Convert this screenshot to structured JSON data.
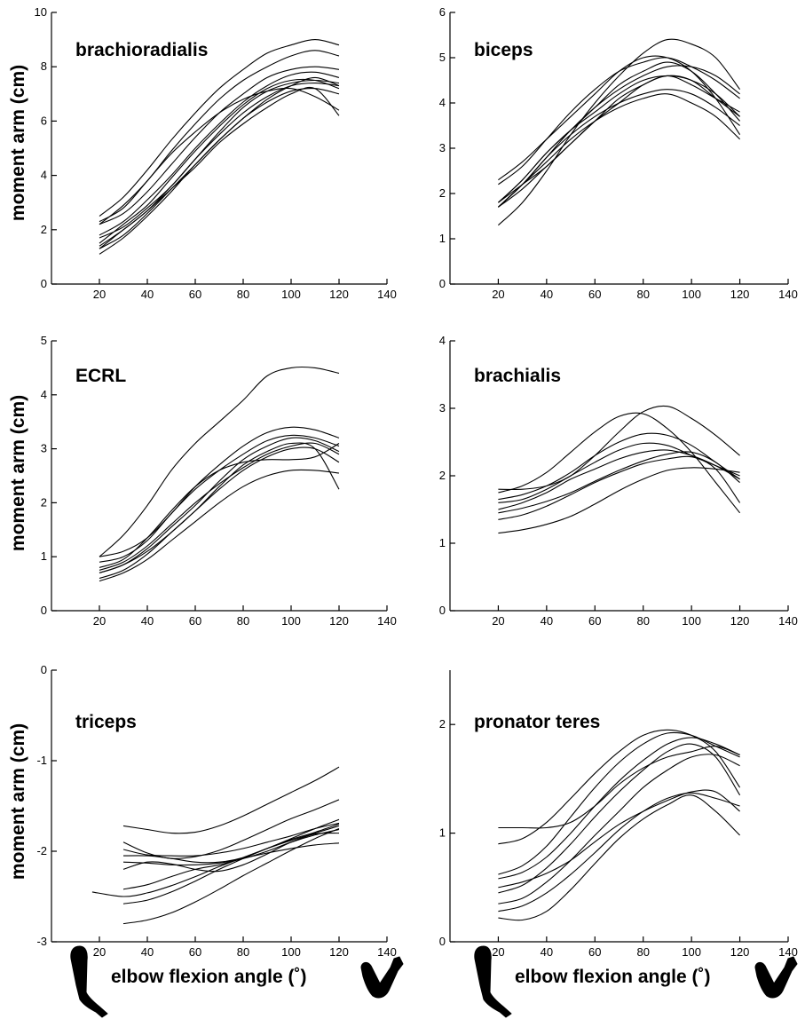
{
  "colors": {
    "background": "#ffffff",
    "ink": "#000000"
  },
  "figure": {
    "ylabel": "moment arm (cm)",
    "xlabel": "elbow flexion angle (˚)",
    "icons": [
      "extended-arm-icon",
      "flexed-arm-icon"
    ]
  },
  "chart_data": [
    {
      "type": "line",
      "title": "brachioradialis",
      "xlim": [
        0,
        140
      ],
      "ylim": [
        0,
        10
      ],
      "xticks": [
        20,
        40,
        60,
        80,
        100,
        120,
        140
      ],
      "yticks": [
        0,
        2,
        4,
        6,
        8,
        10
      ],
      "x": [
        20,
        30,
        40,
        50,
        60,
        70,
        80,
        90,
        100,
        110,
        120
      ],
      "series": [
        {
          "values": [
            2.5,
            3.2,
            4.2,
            5.3,
            6.3,
            7.2,
            7.9,
            8.5,
            8.8,
            9.0,
            8.8
          ]
        },
        {
          "values": [
            2.2,
            2.9,
            3.8,
            4.9,
            5.9,
            6.8,
            7.5,
            8.0,
            8.4,
            8.6,
            8.4
          ]
        },
        {
          "values": [
            2.2,
            2.6,
            3.4,
            4.4,
            5.4,
            6.3,
            7.0,
            7.6,
            7.9,
            8.0,
            7.9
          ]
        },
        {
          "values": [
            1.8,
            2.3,
            3.1,
            4.0,
            5.0,
            5.9,
            6.7,
            7.3,
            7.7,
            7.8,
            7.6
          ]
        },
        {
          "values": [
            1.5,
            2.2,
            2.9,
            3.9,
            4.9,
            5.8,
            6.6,
            7.2,
            7.5,
            7.5,
            7.2
          ]
        },
        {
          "values": [
            1.7,
            2.1,
            2.8,
            3.6,
            4.6,
            5.6,
            6.5,
            7.1,
            7.4,
            7.5,
            7.4
          ]
        },
        {
          "values": [
            1.3,
            2.0,
            2.7,
            3.6,
            4.6,
            5.5,
            6.3,
            6.9,
            7.3,
            7.4,
            7.3
          ]
        },
        {
          "values": [
            1.1,
            1.7,
            2.5,
            3.4,
            4.4,
            5.3,
            6.1,
            6.7,
            7.1,
            7.2,
            7.0
          ]
        },
        {
          "values": [
            1.4,
            2.0,
            2.7,
            3.5,
            4.3,
            5.2,
            5.9,
            6.5,
            7.0,
            7.2,
            6.2
          ]
        },
        {
          "values": [
            2.3,
            2.8,
            3.8,
            4.8,
            5.6,
            6.3,
            6.8,
            7.1,
            7.2,
            6.9,
            6.4
          ]
        },
        {
          "values": [
            1.3,
            1.8,
            2.6,
            3.5,
            4.4,
            5.3,
            6.1,
            6.8,
            7.3,
            7.6,
            7.3
          ]
        }
      ]
    },
    {
      "type": "line",
      "title": "biceps",
      "xlim": [
        0,
        140
      ],
      "ylim": [
        0,
        6
      ],
      "xticks": [
        20,
        40,
        60,
        80,
        100,
        120,
        140
      ],
      "yticks": [
        0,
        1,
        2,
        3,
        4,
        5,
        6
      ],
      "x": [
        20,
        30,
        40,
        50,
        60,
        70,
        80,
        90,
        100,
        110,
        120
      ],
      "series": [
        {
          "values": [
            1.3,
            1.8,
            2.5,
            3.3,
            4.0,
            4.6,
            5.1,
            5.4,
            5.3,
            5.0,
            4.3
          ]
        },
        {
          "values": [
            2.2,
            2.6,
            3.2,
            3.8,
            4.3,
            4.7,
            4.9,
            5.0,
            4.8,
            4.5,
            4.1
          ]
        },
        {
          "values": [
            2.3,
            2.7,
            3.2,
            3.7,
            4.2,
            4.7,
            5.0,
            5.0,
            4.7,
            4.1,
            3.3
          ]
        },
        {
          "values": [
            1.7,
            2.2,
            2.8,
            3.4,
            3.9,
            4.3,
            4.6,
            4.8,
            4.8,
            4.6,
            4.2
          ]
        },
        {
          "values": [
            1.8,
            2.3,
            2.9,
            3.4,
            3.8,
            4.2,
            4.5,
            4.6,
            4.5,
            4.2,
            3.7
          ]
        },
        {
          "values": [
            1.7,
            2.2,
            2.8,
            3.3,
            3.7,
            4.0,
            4.2,
            4.3,
            4.2,
            3.9,
            3.5
          ]
        },
        {
          "values": [
            1.8,
            2.3,
            2.9,
            3.4,
            3.9,
            4.4,
            4.7,
            4.9,
            4.7,
            4.2,
            3.6
          ]
        },
        {
          "values": [
            1.7,
            2.2,
            2.7,
            3.2,
            3.6,
            3.9,
            4.1,
            4.2,
            4.0,
            3.7,
            3.2
          ]
        },
        {
          "values": [
            1.8,
            2.2,
            2.6,
            3.1,
            3.6,
            4.0,
            4.4,
            4.6,
            4.5,
            4.1,
            3.7
          ]
        },
        {
          "values": [
            1.7,
            2.1,
            2.6,
            3.1,
            3.6,
            4.1,
            4.4,
            4.6,
            4.4,
            4.1,
            3.8
          ]
        }
      ]
    },
    {
      "type": "line",
      "title": "ECRL",
      "xlim": [
        0,
        140
      ],
      "ylim": [
        0,
        5
      ],
      "xticks": [
        20,
        40,
        60,
        80,
        100,
        120,
        140
      ],
      "yticks": [
        0,
        1,
        2,
        3,
        4,
        5
      ],
      "x": [
        20,
        30,
        40,
        50,
        60,
        70,
        80,
        90,
        100,
        110,
        120
      ],
      "series": [
        {
          "values": [
            1.0,
            1.4,
            1.95,
            2.6,
            3.1,
            3.5,
            3.9,
            4.35,
            4.5,
            4.5,
            4.4
          ]
        },
        {
          "values": [
            1.0,
            1.1,
            1.35,
            1.8,
            2.3,
            2.7,
            3.05,
            3.3,
            3.4,
            3.35,
            3.2
          ]
        },
        {
          "values": [
            0.9,
            1.0,
            1.3,
            1.8,
            2.25,
            2.6,
            2.9,
            3.15,
            3.25,
            3.2,
            3.05
          ]
        },
        {
          "values": [
            0.7,
            0.85,
            1.15,
            1.55,
            1.95,
            2.4,
            2.8,
            3.05,
            3.2,
            3.15,
            2.95
          ]
        },
        {
          "values": [
            0.75,
            0.9,
            1.2,
            1.6,
            2.0,
            2.35,
            2.65,
            2.9,
            3.05,
            3.1,
            2.9
          ]
        },
        {
          "values": [
            0.6,
            0.75,
            1.05,
            1.45,
            1.85,
            2.25,
            2.6,
            2.85,
            3.0,
            3.0,
            2.75
          ]
        },
        {
          "values": [
            0.55,
            0.7,
            0.95,
            1.3,
            1.65,
            2.0,
            2.3,
            2.5,
            2.6,
            2.6,
            2.55
          ]
        },
        {
          "values": [
            0.8,
            0.95,
            1.35,
            1.85,
            2.3,
            2.6,
            2.75,
            2.8,
            2.8,
            2.85,
            3.1
          ]
        },
        {
          "values": [
            0.7,
            0.85,
            1.1,
            1.45,
            1.85,
            2.3,
            2.7,
            2.95,
            3.1,
            3.0,
            2.25
          ]
        }
      ]
    },
    {
      "type": "line",
      "title": "brachialis",
      "xlim": [
        0,
        140
      ],
      "ylim": [
        0,
        4
      ],
      "xticks": [
        20,
        40,
        60,
        80,
        100,
        120,
        140
      ],
      "yticks": [
        0,
        1,
        2,
        3,
        4
      ],
      "x": [
        20,
        30,
        40,
        50,
        60,
        70,
        80,
        90,
        100,
        110,
        120
      ],
      "series": [
        {
          "values": [
            1.75,
            1.85,
            2.05,
            2.35,
            2.65,
            2.88,
            2.92,
            2.7,
            2.35,
            1.9,
            1.45
          ]
        },
        {
          "values": [
            1.8,
            1.8,
            1.85,
            2.0,
            2.3,
            2.65,
            2.95,
            3.03,
            2.85,
            2.6,
            2.3
          ]
        },
        {
          "values": [
            1.65,
            1.72,
            1.85,
            2.05,
            2.3,
            2.5,
            2.62,
            2.6,
            2.45,
            2.2,
            1.95
          ]
        },
        {
          "values": [
            1.6,
            1.65,
            1.8,
            2.0,
            2.2,
            2.38,
            2.48,
            2.45,
            2.3,
            2.1,
            1.6
          ]
        },
        {
          "values": [
            1.5,
            1.6,
            1.75,
            1.95,
            2.1,
            2.25,
            2.35,
            2.38,
            2.3,
            2.15,
            1.95
          ]
        },
        {
          "values": [
            1.45,
            1.52,
            1.62,
            1.75,
            1.92,
            2.08,
            2.22,
            2.32,
            2.35,
            2.2,
            1.9
          ]
        },
        {
          "values": [
            1.35,
            1.42,
            1.55,
            1.72,
            1.9,
            2.05,
            2.18,
            2.25,
            2.28,
            2.15,
            2.0
          ]
        },
        {
          "values": [
            1.15,
            1.2,
            1.28,
            1.4,
            1.58,
            1.78,
            1.95,
            2.08,
            2.12,
            2.1,
            2.05
          ]
        }
      ]
    },
    {
      "type": "line",
      "title": "triceps",
      "xlim": [
        0,
        140
      ],
      "ylim": [
        -3,
        0
      ],
      "xticks": [
        20,
        40,
        60,
        80,
        100,
        120,
        140
      ],
      "yticks": [
        -3,
        -2,
        -1,
        0
      ],
      "x": [
        17,
        30,
        40,
        50,
        60,
        70,
        80,
        90,
        100,
        110,
        120
      ],
      "series": [
        {
          "values": [
            null,
            -1.72,
            -1.76,
            -1.8,
            -1.79,
            -1.72,
            -1.61,
            -1.48,
            -1.35,
            -1.22,
            -1.07
          ]
        },
        {
          "values": [
            null,
            -1.9,
            -2.02,
            -2.08,
            -2.06,
            -1.99,
            -1.88,
            -1.76,
            -1.64,
            -1.54,
            -1.43
          ]
        },
        {
          "values": [
            null,
            -1.98,
            -2.04,
            -2.05,
            -2.05,
            -2.02,
            -1.97,
            -1.9,
            -1.83,
            -1.75,
            -1.69
          ]
        },
        {
          "values": [
            null,
            -2.05,
            -2.05,
            -2.08,
            -2.12,
            -2.12,
            -2.07,
            -1.97,
            -1.86,
            -1.75,
            -1.65
          ]
        },
        {
          "values": [
            null,
            -2.12,
            -2.13,
            -2.15,
            -2.15,
            -2.13,
            -2.08,
            -2.0,
            -1.9,
            -1.82,
            -1.76
          ]
        },
        {
          "values": [
            null,
            -2.2,
            -2.12,
            -2.14,
            -2.2,
            -2.22,
            -2.15,
            -2.03,
            -1.9,
            -1.81,
            -1.8
          ]
        },
        {
          "values": [
            null,
            -2.42,
            -2.37,
            -2.28,
            -2.2,
            -2.15,
            -2.08,
            -2.02,
            -1.97,
            -1.93,
            -1.91
          ]
        },
        {
          "values": [
            null,
            -2.58,
            -2.54,
            -2.45,
            -2.33,
            -2.2,
            -2.08,
            -1.97,
            -1.87,
            -1.79,
            -1.7
          ]
        },
        {
          "values": [
            null,
            -2.8,
            -2.76,
            -2.68,
            -2.56,
            -2.42,
            -2.27,
            -2.13,
            -1.99,
            -1.86,
            -1.75
          ]
        },
        {
          "values": [
            -2.45,
            -2.5,
            -2.46,
            -2.38,
            -2.28,
            -2.17,
            -2.07,
            -1.97,
            -1.88,
            -1.8,
            -1.72
          ]
        }
      ]
    },
    {
      "type": "line",
      "title": "pronator teres",
      "xlim": [
        0,
        140
      ],
      "ylim": [
        0,
        2.5
      ],
      "xticks": [
        20,
        40,
        60,
        80,
        100,
        120,
        140
      ],
      "yticks": [
        0,
        1,
        2
      ],
      "x": [
        20,
        30,
        40,
        50,
        60,
        70,
        80,
        90,
        100,
        110,
        120
      ],
      "series": [
        {
          "values": [
            1.05,
            1.05,
            1.05,
            1.1,
            1.25,
            1.45,
            1.6,
            1.7,
            1.75,
            1.8,
            1.72
          ]
        },
        {
          "values": [
            0.9,
            0.95,
            1.1,
            1.32,
            1.55,
            1.75,
            1.9,
            1.95,
            1.9,
            1.75,
            1.42
          ]
        },
        {
          "values": [
            0.62,
            0.7,
            0.88,
            1.15,
            1.42,
            1.65,
            1.82,
            1.92,
            1.9,
            1.8,
            1.7
          ]
        },
        {
          "values": [
            0.58,
            0.64,
            0.78,
            1.0,
            1.25,
            1.48,
            1.67,
            1.82,
            1.88,
            1.82,
            1.72
          ]
        },
        {
          "values": [
            0.45,
            0.52,
            0.68,
            0.9,
            1.15,
            1.38,
            1.58,
            1.75,
            1.82,
            1.7,
            1.35
          ]
        },
        {
          "values": [
            0.35,
            0.4,
            0.55,
            0.75,
            0.98,
            1.2,
            1.42,
            1.58,
            1.7,
            1.72,
            1.62
          ]
        },
        {
          "values": [
            0.28,
            0.33,
            0.45,
            0.62,
            0.82,
            1.03,
            1.2,
            1.32,
            1.37,
            1.32,
            1.25
          ]
        },
        {
          "values": [
            0.5,
            0.55,
            0.63,
            0.75,
            0.92,
            1.08,
            1.2,
            1.3,
            1.38,
            1.38,
            1.2
          ]
        },
        {
          "values": [
            0.22,
            0.2,
            0.28,
            0.48,
            0.72,
            0.95,
            1.13,
            1.26,
            1.35,
            1.2,
            0.98
          ]
        }
      ]
    }
  ]
}
